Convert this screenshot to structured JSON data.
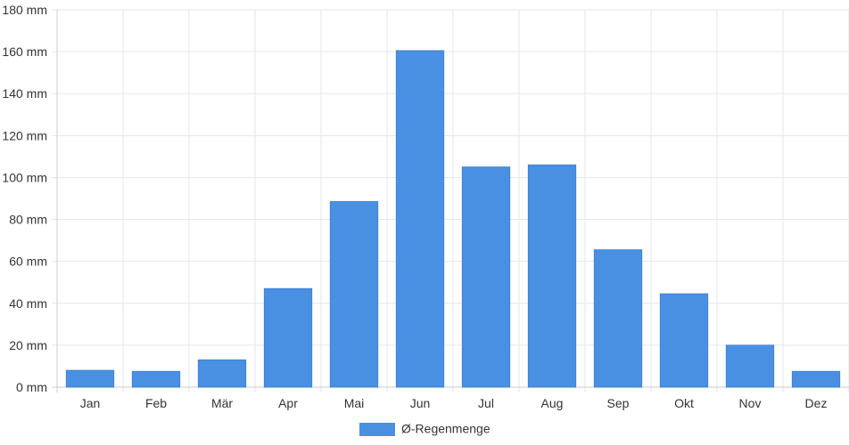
{
  "chart_data": {
    "type": "bar",
    "categories": [
      "Jan",
      "Feb",
      "Mär",
      "Apr",
      "Mai",
      "Jun",
      "Jul",
      "Aug",
      "Sep",
      "Okt",
      "Nov",
      "Dez"
    ],
    "series": [
      {
        "name": "Ø-Regenmenge",
        "color": "#4a90e2",
        "values": [
          8,
          7.5,
          13,
          47,
          88.5,
          160.5,
          105,
          106,
          65.5,
          44.5,
          20,
          7.5
        ]
      }
    ],
    "y_ticks": [
      "0 mm",
      "20 mm",
      "40 mm",
      "60 mm",
      "80 mm",
      "100 mm",
      "120 mm",
      "140 mm",
      "160 mm",
      "180 mm"
    ],
    "ylim": [
      0,
      180
    ],
    "y_unit": "mm",
    "grid": true,
    "legend_position": "bottom-center",
    "colors": {
      "bar": "#4a90e2",
      "grid": "#e6e6e6",
      "axis": "#cccccc",
      "text": "#333333"
    }
  }
}
